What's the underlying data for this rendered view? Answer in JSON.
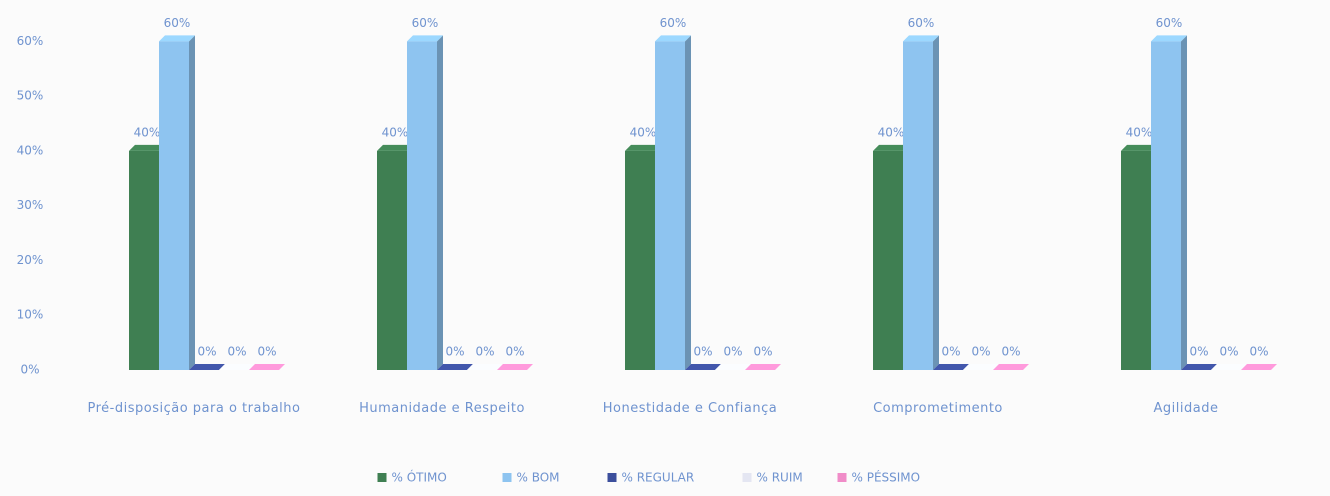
{
  "chart_data": {
    "type": "bar",
    "categories": [
      "Pré-disposição para o trabalho",
      "Humanidade e Respeito",
      "Honestidade e Confiança",
      "Comprometimento",
      "Agilidade"
    ],
    "series": [
      {
        "name": "% ÓTIMO",
        "color": "#3f7f52",
        "values": [
          40,
          40,
          40,
          40,
          40
        ],
        "value_labels": [
          "40%",
          "40%",
          "40%",
          "40%",
          "40%"
        ]
      },
      {
        "name": "% BOM",
        "color": "#8ec4f0",
        "values": [
          60,
          60,
          60,
          60,
          60
        ],
        "value_labels": [
          "60%",
          "60%",
          "60%",
          "60%",
          "60%"
        ]
      },
      {
        "name": "% REGULAR",
        "color": "#3c4f9c",
        "values": [
          0,
          0,
          0,
          0,
          0
        ],
        "value_labels": [
          "0%",
          "0%",
          "0%",
          "0%",
          "0%"
        ]
      },
      {
        "name": "% RUIM",
        "color": "#e4e6f2",
        "values": [
          0,
          0,
          0,
          0,
          0
        ],
        "value_labels": [
          "0%",
          "0%",
          "0%",
          "0%",
          "0%"
        ]
      },
      {
        "name": "% PÉSSIMO",
        "color": "#f08cc8",
        "values": [
          0,
          0,
          0,
          0,
          0
        ],
        "value_labels": [
          "0%",
          "0%",
          "0%",
          "0%",
          "0%"
        ]
      }
    ],
    "ylim": [
      0,
      65
    ],
    "yticks": [
      {
        "value": 0,
        "label": "0%"
      },
      {
        "value": 10,
        "label": "10%"
      },
      {
        "value": 20,
        "label": "20%"
      },
      {
        "value": 30,
        "label": "30%"
      },
      {
        "value": 40,
        "label": "40%"
      },
      {
        "value": 50,
        "label": "50%"
      },
      {
        "value": 60,
        "label": "60%"
      }
    ],
    "grid": false
  }
}
